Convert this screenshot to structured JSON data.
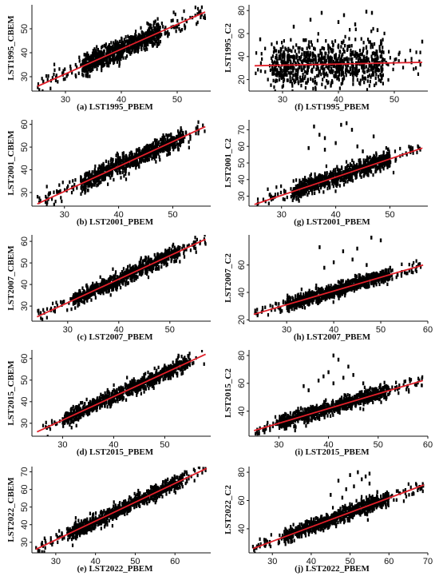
{
  "chart_data": [
    {
      "type": "scatter",
      "caption": "(a) LST1995_PBEM",
      "ylabel": "LST1995_CBEM",
      "xlim": [
        24,
        56
      ],
      "ylim": [
        24,
        60
      ],
      "xticks": [
        30,
        40,
        50
      ],
      "yticks": [
        30,
        40,
        50
      ],
      "fit": {
        "x": [
          25,
          55
        ],
        "y": [
          26,
          57
        ]
      },
      "cloud": {
        "x_range": [
          25,
          55
        ],
        "slope": 1.033,
        "intercept": 0.17,
        "spread": 2.2,
        "core": [
          33,
          47
        ],
        "outliers": []
      }
    },
    {
      "type": "scatter",
      "caption": "(b) LST2001_PBEM",
      "ylabel": "LST2001_CBEM",
      "xlim": [
        24,
        57
      ],
      "ylim": [
        24,
        62
      ],
      "xticks": [
        30,
        40,
        50
      ],
      "yticks": [
        30,
        40,
        50,
        60
      ],
      "fit": {
        "x": [
          25,
          56
        ],
        "y": [
          25,
          59
        ]
      },
      "cloud": {
        "x_range": [
          25,
          56
        ],
        "slope": 1.097,
        "intercept": -2.4,
        "spread": 2.0,
        "core": [
          33,
          52
        ],
        "outliers": []
      }
    },
    {
      "type": "scatter",
      "caption": "(c) LST2007_PBEM",
      "ylabel": "LST2007_CBEM",
      "xlim": [
        23,
        58
      ],
      "ylim": [
        23,
        63
      ],
      "xticks": [
        30,
        40,
        50
      ],
      "yticks": [
        30,
        40,
        50,
        60
      ],
      "fit": {
        "x": [
          24,
          57
        ],
        "y": [
          25,
          61
        ]
      },
      "cloud": {
        "x_range": [
          24,
          57
        ],
        "slope": 1.091,
        "intercept": -1.2,
        "spread": 1.8,
        "core": [
          31,
          52
        ],
        "outliers": []
      }
    },
    {
      "type": "scatter",
      "caption": "(d) LST2015_PBEM",
      "ylabel": "LST2015_CBEM",
      "xlim": [
        24,
        59
      ],
      "ylim": [
        24,
        64
      ],
      "xticks": [
        30,
        40,
        50
      ],
      "yticks": [
        30,
        40,
        50,
        60
      ],
      "fit": {
        "x": [
          25,
          58
        ],
        "y": [
          26,
          62
        ]
      },
      "cloud": {
        "x_range": [
          25,
          58
        ],
        "slope": 1.091,
        "intercept": -1.3,
        "spread": 1.8,
        "core": [
          30,
          55
        ],
        "outliers": []
      }
    },
    {
      "type": "scatter",
      "caption": "(e) LST2022_PBEM",
      "ylabel": "LST2022_CBEM",
      "xlim": [
        24,
        69
      ],
      "ylim": [
        24,
        73
      ],
      "xticks": [
        30,
        40,
        50,
        60
      ],
      "yticks": [
        30,
        40,
        50,
        60,
        70
      ],
      "fit": {
        "x": [
          25,
          68
        ],
        "y": [
          26,
          72
        ]
      },
      "cloud": {
        "x_range": [
          25,
          68
        ],
        "slope": 1.07,
        "intercept": -0.75,
        "spread": 2.0,
        "core": [
          33,
          62
        ],
        "outliers": []
      }
    },
    {
      "type": "scatter",
      "caption": "(f) LST1995_PBEM",
      "ylabel": "LST1995_C2",
      "xlim": [
        24,
        56
      ],
      "ylim": [
        10,
        85
      ],
      "xticks": [
        30,
        40,
        50
      ],
      "yticks": [
        20,
        40,
        60,
        80
      ],
      "fit": {
        "x": [
          25,
          55
        ],
        "y": [
          32,
          35
        ]
      },
      "cloud": {
        "x_range": [
          25,
          55
        ],
        "slope": 0.1,
        "intercept": 29.5,
        "spread": 9,
        "core": [
          28,
          48
        ],
        "outliers": [
          [
            37,
            78
          ],
          [
            41,
            76
          ],
          [
            45,
            79
          ],
          [
            46,
            78
          ],
          [
            40,
            70
          ],
          [
            35,
            72
          ],
          [
            43,
            68
          ],
          [
            47,
            63
          ],
          [
            55,
            53
          ],
          [
            26,
            55
          ],
          [
            32,
            66
          ]
        ]
      }
    },
    {
      "type": "scatter",
      "caption": "(g) LST2001_PBEM",
      "ylabel": "LST2001_C2",
      "xlim": [
        24,
        57
      ],
      "ylim": [
        24,
        76
      ],
      "xticks": [
        30,
        40,
        50
      ],
      "yticks": [
        30,
        40,
        50,
        60,
        70
      ],
      "fit": {
        "x": [
          25,
          56
        ],
        "y": [
          25,
          59
        ]
      },
      "cloud": {
        "x_range": [
          25,
          56
        ],
        "slope": 1.097,
        "intercept": -2.4,
        "spread": 2.5,
        "core": [
          32,
          50
        ],
        "outliers": [
          [
            36,
            72
          ],
          [
            37,
            67
          ],
          [
            38,
            65
          ],
          [
            41,
            73
          ],
          [
            42,
            74
          ],
          [
            43,
            70
          ],
          [
            44,
            60
          ],
          [
            40,
            62
          ],
          [
            38,
            58
          ],
          [
            45,
            57
          ],
          [
            35,
            59
          ],
          [
            47,
            66
          ]
        ]
      }
    },
    {
      "type": "scatter",
      "caption": "(h) LST2007_PBEM",
      "ylabel": "LST2007_C2",
      "xlim": [
        22,
        60
      ],
      "ylim": [
        19,
        82
      ],
      "xticks": [
        30,
        40,
        50,
        60
      ],
      "yticks": [
        20,
        40,
        60
      ],
      "fit": {
        "x": [
          23,
          59
        ],
        "y": [
          24,
          60
        ]
      },
      "cloud": {
        "x_range": [
          23,
          59
        ],
        "slope": 1.0,
        "intercept": 1.0,
        "spread": 2.5,
        "core": [
          30,
          52
        ],
        "outliers": [
          [
            37,
            73
          ],
          [
            42,
            70
          ],
          [
            45,
            72
          ],
          [
            48,
            80
          ],
          [
            50,
            78
          ],
          [
            40,
            62
          ],
          [
            44,
            64
          ],
          [
            47,
            60
          ],
          [
            38,
            58
          ],
          [
            52,
            58
          ]
        ]
      }
    },
    {
      "type": "scatter",
      "caption": "(i) LST2015_PBEM",
      "ylabel": "LST2015_C2",
      "xlim": [
        24,
        60
      ],
      "ylim": [
        22,
        84
      ],
      "xticks": [
        30,
        40,
        50,
        60
      ],
      "yticks": [
        40,
        60,
        80
      ],
      "fit": {
        "x": [
          25,
          59
        ],
        "y": [
          26,
          62
        ]
      },
      "cloud": {
        "x_range": [
          25,
          59
        ],
        "slope": 1.059,
        "intercept": -0.5,
        "spread": 2.5,
        "core": [
          30,
          52
        ],
        "outliers": [
          [
            41,
            80
          ],
          [
            42,
            77
          ],
          [
            44,
            72
          ],
          [
            40,
            68
          ],
          [
            43,
            64
          ],
          [
            45,
            66
          ],
          [
            38,
            62
          ],
          [
            35,
            58
          ],
          [
            47,
            60
          ],
          [
            39,
            65
          ],
          [
            41,
            60
          ],
          [
            36,
            55
          ]
        ]
      }
    },
    {
      "type": "scatter",
      "caption": "(j) LST2022_PBEM",
      "ylabel": "LST2022_C2",
      "xlim": [
        24,
        70
      ],
      "ylim": [
        23,
        84
      ],
      "xticks": [
        30,
        40,
        50,
        60,
        70
      ],
      "yticks": [
        40,
        60,
        80
      ],
      "fit": {
        "x": [
          25,
          69
        ],
        "y": [
          26,
          71
        ]
      },
      "cloud": {
        "x_range": [
          25,
          69
        ],
        "slope": 1.023,
        "intercept": 0.4,
        "spread": 2.5,
        "core": [
          33,
          60
        ],
        "outliers": [
          [
            50,
            78
          ],
          [
            52,
            80
          ],
          [
            54,
            77
          ],
          [
            53,
            75
          ],
          [
            55,
            72
          ],
          [
            51,
            70
          ],
          [
            49,
            68
          ],
          [
            47,
            74
          ],
          [
            57,
            66
          ],
          [
            45,
            64
          ],
          [
            55,
            79
          ],
          [
            48,
            62
          ]
        ]
      }
    }
  ]
}
